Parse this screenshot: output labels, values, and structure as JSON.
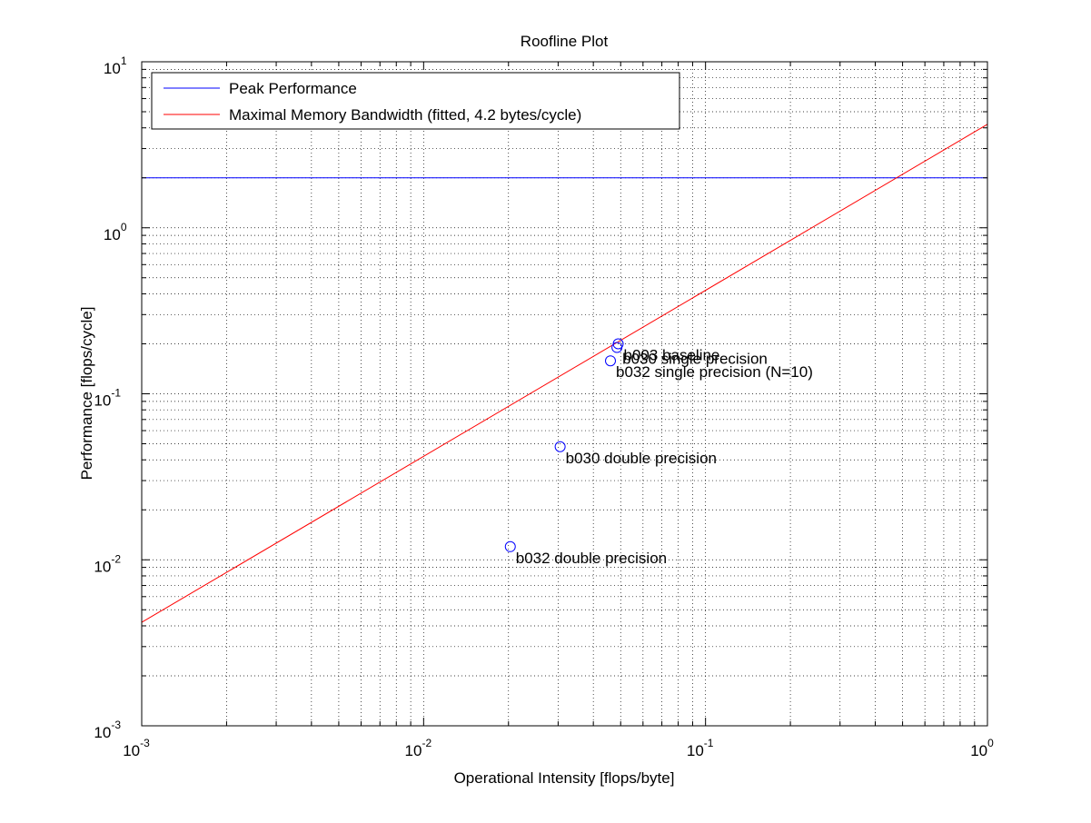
{
  "colors": {
    "background": "#ffffff",
    "axes": "#000000",
    "grid": "#000000",
    "peak": "#0000ff",
    "bandwidth": "#ff0000",
    "points": "#0000ff"
  },
  "chart_data": {
    "type": "line",
    "title": "Roofline Plot",
    "xlabel": "Operational Intensity [flops/byte]",
    "ylabel": "Performance [flops/cycle]",
    "x_scale": "log",
    "y_scale": "log",
    "xlim": [
      0.001,
      1
    ],
    "ylim": [
      0.001,
      10
    ],
    "grid": true,
    "minor_grid": true,
    "legend_position": "top-left",
    "x_ticks": [
      {
        "value": 0.001,
        "base": "10",
        "exp": "-3"
      },
      {
        "value": 0.01,
        "base": "10",
        "exp": "-2"
      },
      {
        "value": 0.1,
        "base": "10",
        "exp": "-1"
      },
      {
        "value": 1,
        "base": "10",
        "exp": "0"
      }
    ],
    "y_ticks": [
      {
        "value": 0.001,
        "base": "10",
        "exp": "-3"
      },
      {
        "value": 0.01,
        "base": "10",
        "exp": "-2"
      },
      {
        "value": 0.1,
        "base": "10",
        "exp": "-1"
      },
      {
        "value": 1,
        "base": "10",
        "exp": "0"
      },
      {
        "value": 10,
        "base": "10",
        "exp": "1"
      }
    ],
    "series": [
      {
        "name": "Peak Performance",
        "color": "#0000ff",
        "x": [
          0.001,
          1
        ],
        "y": [
          2,
          2
        ]
      },
      {
        "name": "Maximal Memory Bandwidth (fitted, 4.2 bytes/cycle)",
        "color": "#ff0000",
        "x": [
          0.001,
          1
        ],
        "y": [
          0.0042,
          4.2
        ]
      }
    ],
    "points": [
      {
        "label": "b003 baseline",
        "x": 0.049,
        "y": 0.2
      },
      {
        "label": "b030 single precision",
        "x": 0.0485,
        "y": 0.19
      },
      {
        "label": "b032 single precision (N=10)",
        "x": 0.046,
        "y": 0.158
      },
      {
        "label": "b030 double precision",
        "x": 0.0305,
        "y": 0.048
      },
      {
        "label": "b032 double precision",
        "x": 0.0203,
        "y": 0.012
      }
    ]
  }
}
